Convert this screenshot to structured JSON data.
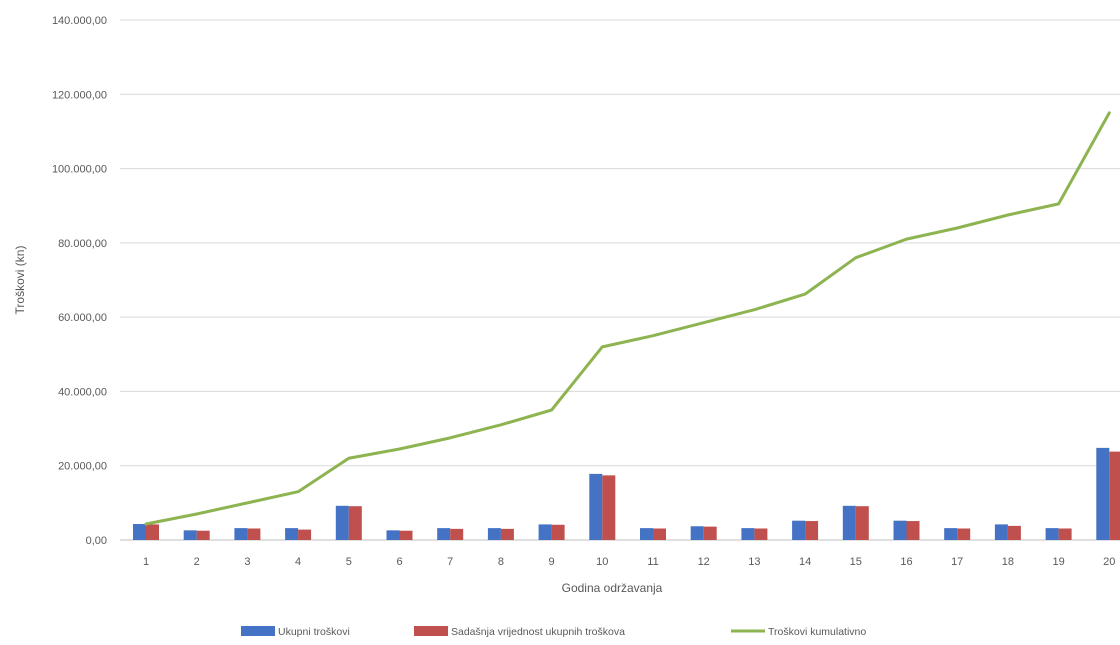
{
  "chart_data": {
    "type": "bar",
    "title": "",
    "xlabel": "Godina održavanja",
    "ylabel": "Troškovi (kn)",
    "ylim": [
      0,
      140000
    ],
    "yticks": [
      0,
      20000,
      40000,
      60000,
      80000,
      100000,
      120000,
      140000
    ],
    "ytick_labels": [
      "0,00",
      "20.000,00",
      "40.000,00",
      "60.000,00",
      "80.000,00",
      "100.000,00",
      "120.000,00",
      "140.000,00"
    ],
    "grid": true,
    "legend_position": "bottom",
    "categories": [
      "1",
      "2",
      "3",
      "4",
      "5",
      "6",
      "7",
      "8",
      "9",
      "10",
      "11",
      "12",
      "13",
      "14",
      "15",
      "16",
      "17",
      "18",
      "19",
      "20"
    ],
    "series": [
      {
        "name": "Ukupni troškovi",
        "kind": "bar",
        "color": "#4472C4",
        "values": [
          4300,
          2600,
          3200,
          3200,
          9200,
          2600,
          3200,
          3200,
          4200,
          17800,
          3200,
          3700,
          3200,
          5200,
          9200,
          5200,
          3200,
          4200,
          3200,
          24800
        ]
      },
      {
        "name": "Sadašnja vrijednost ukupnih troškova",
        "kind": "bar",
        "color": "#C0504D",
        "values": [
          4200,
          2500,
          3100,
          2800,
          9100,
          2500,
          3000,
          3000,
          4100,
          17400,
          3100,
          3600,
          3100,
          5100,
          9100,
          5100,
          3100,
          3800,
          3100,
          23800
        ]
      },
      {
        "name": "Troškovi kumulativno",
        "kind": "line",
        "color": "#8DB451",
        "values": [
          4300,
          7000,
          10000,
          13000,
          22000,
          24500,
          27500,
          31000,
          35000,
          52000,
          55000,
          58500,
          62000,
          66200,
          76000,
          81000,
          84000,
          87500,
          90500,
          115000
        ]
      }
    ]
  }
}
